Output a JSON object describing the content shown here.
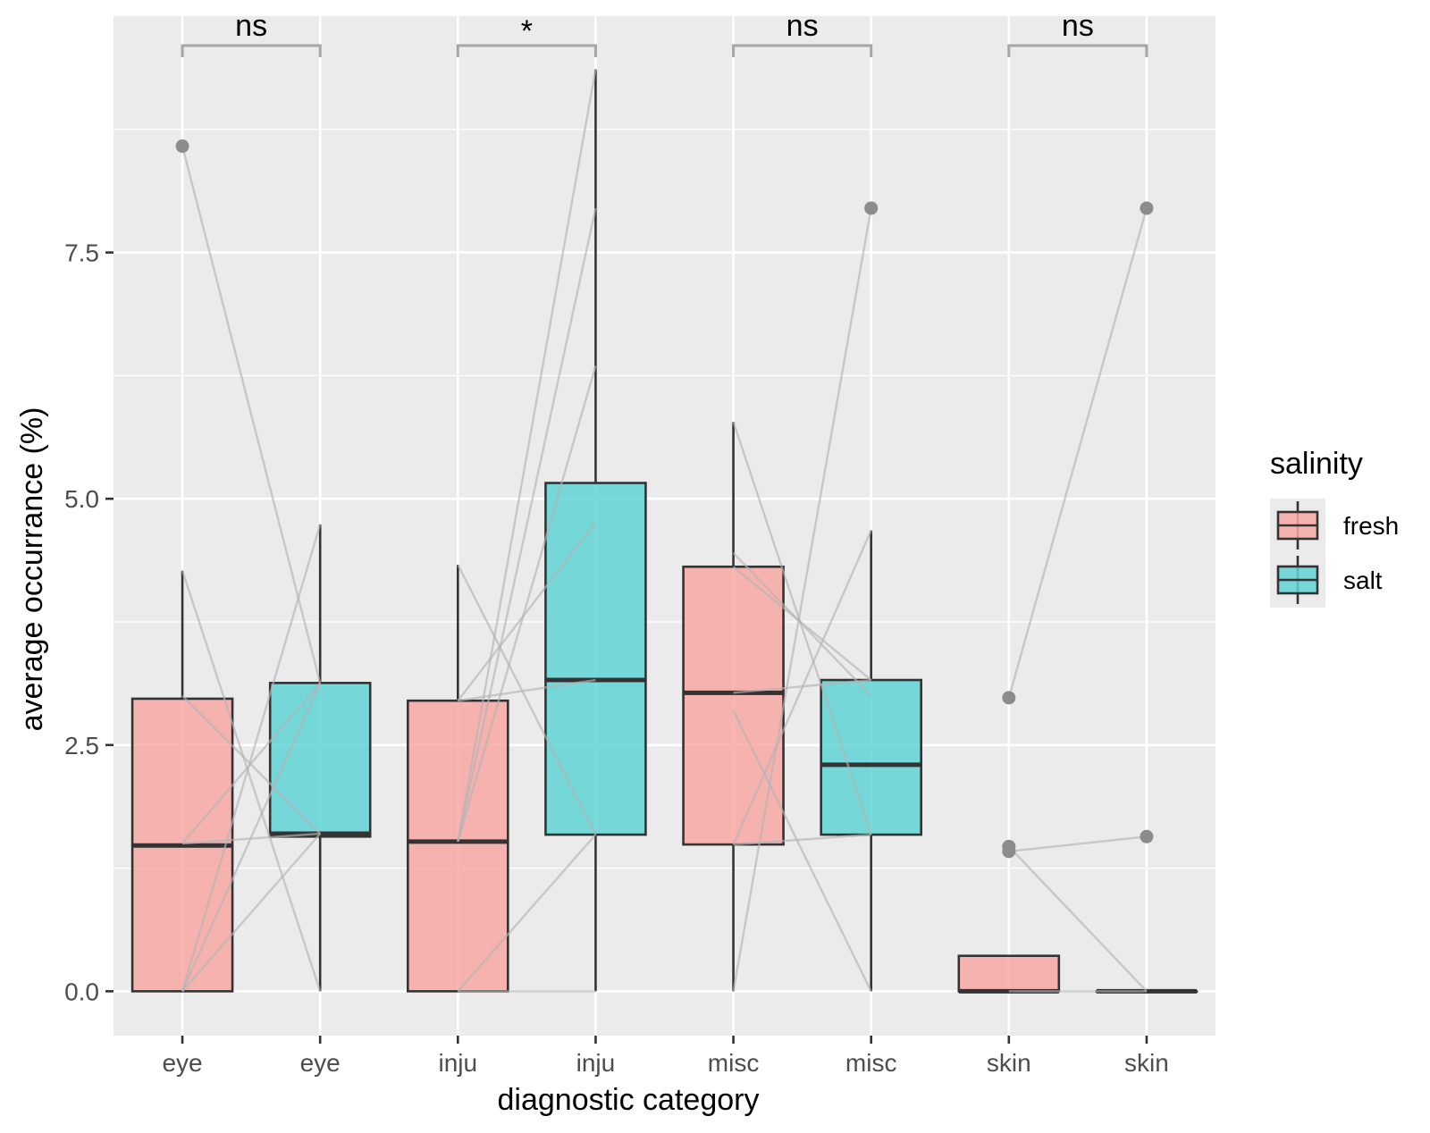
{
  "chart_data": {
    "type": "box",
    "title": "",
    "xlabel": "diagnostic category",
    "ylabel": "average occurrance (%)",
    "ylim": [
      -0.45,
      9.9
    ],
    "yticks": [
      0.0,
      2.5,
      5.0,
      7.5
    ],
    "ytick_labels": [
      "0.0",
      "2.5",
      "5.0",
      "7.5"
    ],
    "grid": true,
    "background": "#ebebeb",
    "categories": [
      "eye",
      "eye",
      "inju",
      "inju",
      "misc",
      "misc",
      "skin",
      "skin"
    ],
    "legend": {
      "title": "salinity",
      "position": "right",
      "entries": [
        {
          "label": "fresh",
          "color": "#f8a8a4"
        },
        {
          "label": "salt",
          "color": "#62d4d6"
        }
      ]
    },
    "series": [
      {
        "name": "fresh",
        "color": "#f8a8a4",
        "boxes": [
          {
            "category": "eye",
            "min": 0.0,
            "q1": 0.0,
            "median": 1.48,
            "q3": 2.97,
            "max": 4.27,
            "outliers": [
              8.58
            ]
          },
          {
            "category": "inju",
            "min": 0.0,
            "q1": 0.0,
            "median": 1.52,
            "q3": 2.95,
            "max": 4.33,
            "outliers": []
          },
          {
            "category": "misc",
            "min": 0.0,
            "q1": 1.49,
            "median": 3.03,
            "q3": 4.31,
            "max": 5.78,
            "outliers": []
          },
          {
            "category": "skin",
            "min": 0.0,
            "q1": 0.0,
            "median": 0.0,
            "q3": 0.36,
            "max": 0.36,
            "outliers": [
              2.98,
              1.47,
              1.42
            ]
          }
        ]
      },
      {
        "name": "salt",
        "color": "#62d4d6",
        "boxes": [
          {
            "category": "eye",
            "min": 0.0,
            "q1": 1.57,
            "median": 1.6,
            "q3": 3.13,
            "max": 4.74,
            "outliers": []
          },
          {
            "category": "inju",
            "min": 0.0,
            "q1": 1.59,
            "median": 3.16,
            "q3": 5.16,
            "max": 9.36,
            "outliers": []
          },
          {
            "category": "misc",
            "min": 0.0,
            "q1": 1.59,
            "median": 2.3,
            "q3": 3.16,
            "max": 4.68,
            "outliers": [
              7.95
            ]
          },
          {
            "category": "skin",
            "min": 0.0,
            "q1": 0.0,
            "median": 0.0,
            "q3": 0.0,
            "max": 0.0,
            "outliers": [
              7.95,
              1.57
            ]
          }
        ]
      }
    ],
    "paired_lines": [
      {
        "category": "eye",
        "from": [
          3.0,
          1.5,
          1.5,
          0.0,
          0.0,
          0.0,
          8.58,
          4.27
        ],
        "to": [
          1.6,
          3.13,
          1.6,
          4.74,
          1.6,
          3.13,
          3.13,
          0.0
        ]
      },
      {
        "category": "inju",
        "from": [
          2.95,
          1.52,
          1.52,
          1.52,
          0.0,
          0.0,
          2.95,
          4.33
        ],
        "to": [
          3.16,
          9.36,
          7.95,
          6.35,
          1.59,
          0.0,
          4.76,
          1.59
        ]
      },
      {
        "category": "misc",
        "from": [
          5.78,
          4.45,
          4.31,
          3.03,
          2.85,
          1.49,
          1.49,
          0.0
        ],
        "to": [
          1.59,
          3.0,
          3.16,
          3.16,
          0.0,
          1.59,
          4.68,
          7.95
        ]
      },
      {
        "category": "skin",
        "from": [
          2.98,
          1.42,
          0.0,
          1.47
        ],
        "to": [
          7.95,
          1.57,
          0.0,
          0.0
        ]
      }
    ],
    "comparisons": [
      {
        "category": "eye",
        "label": "ns"
      },
      {
        "category": "inju",
        "label": "*"
      },
      {
        "category": "misc",
        "label": "ns"
      },
      {
        "category": "skin",
        "label": "ns"
      }
    ]
  }
}
